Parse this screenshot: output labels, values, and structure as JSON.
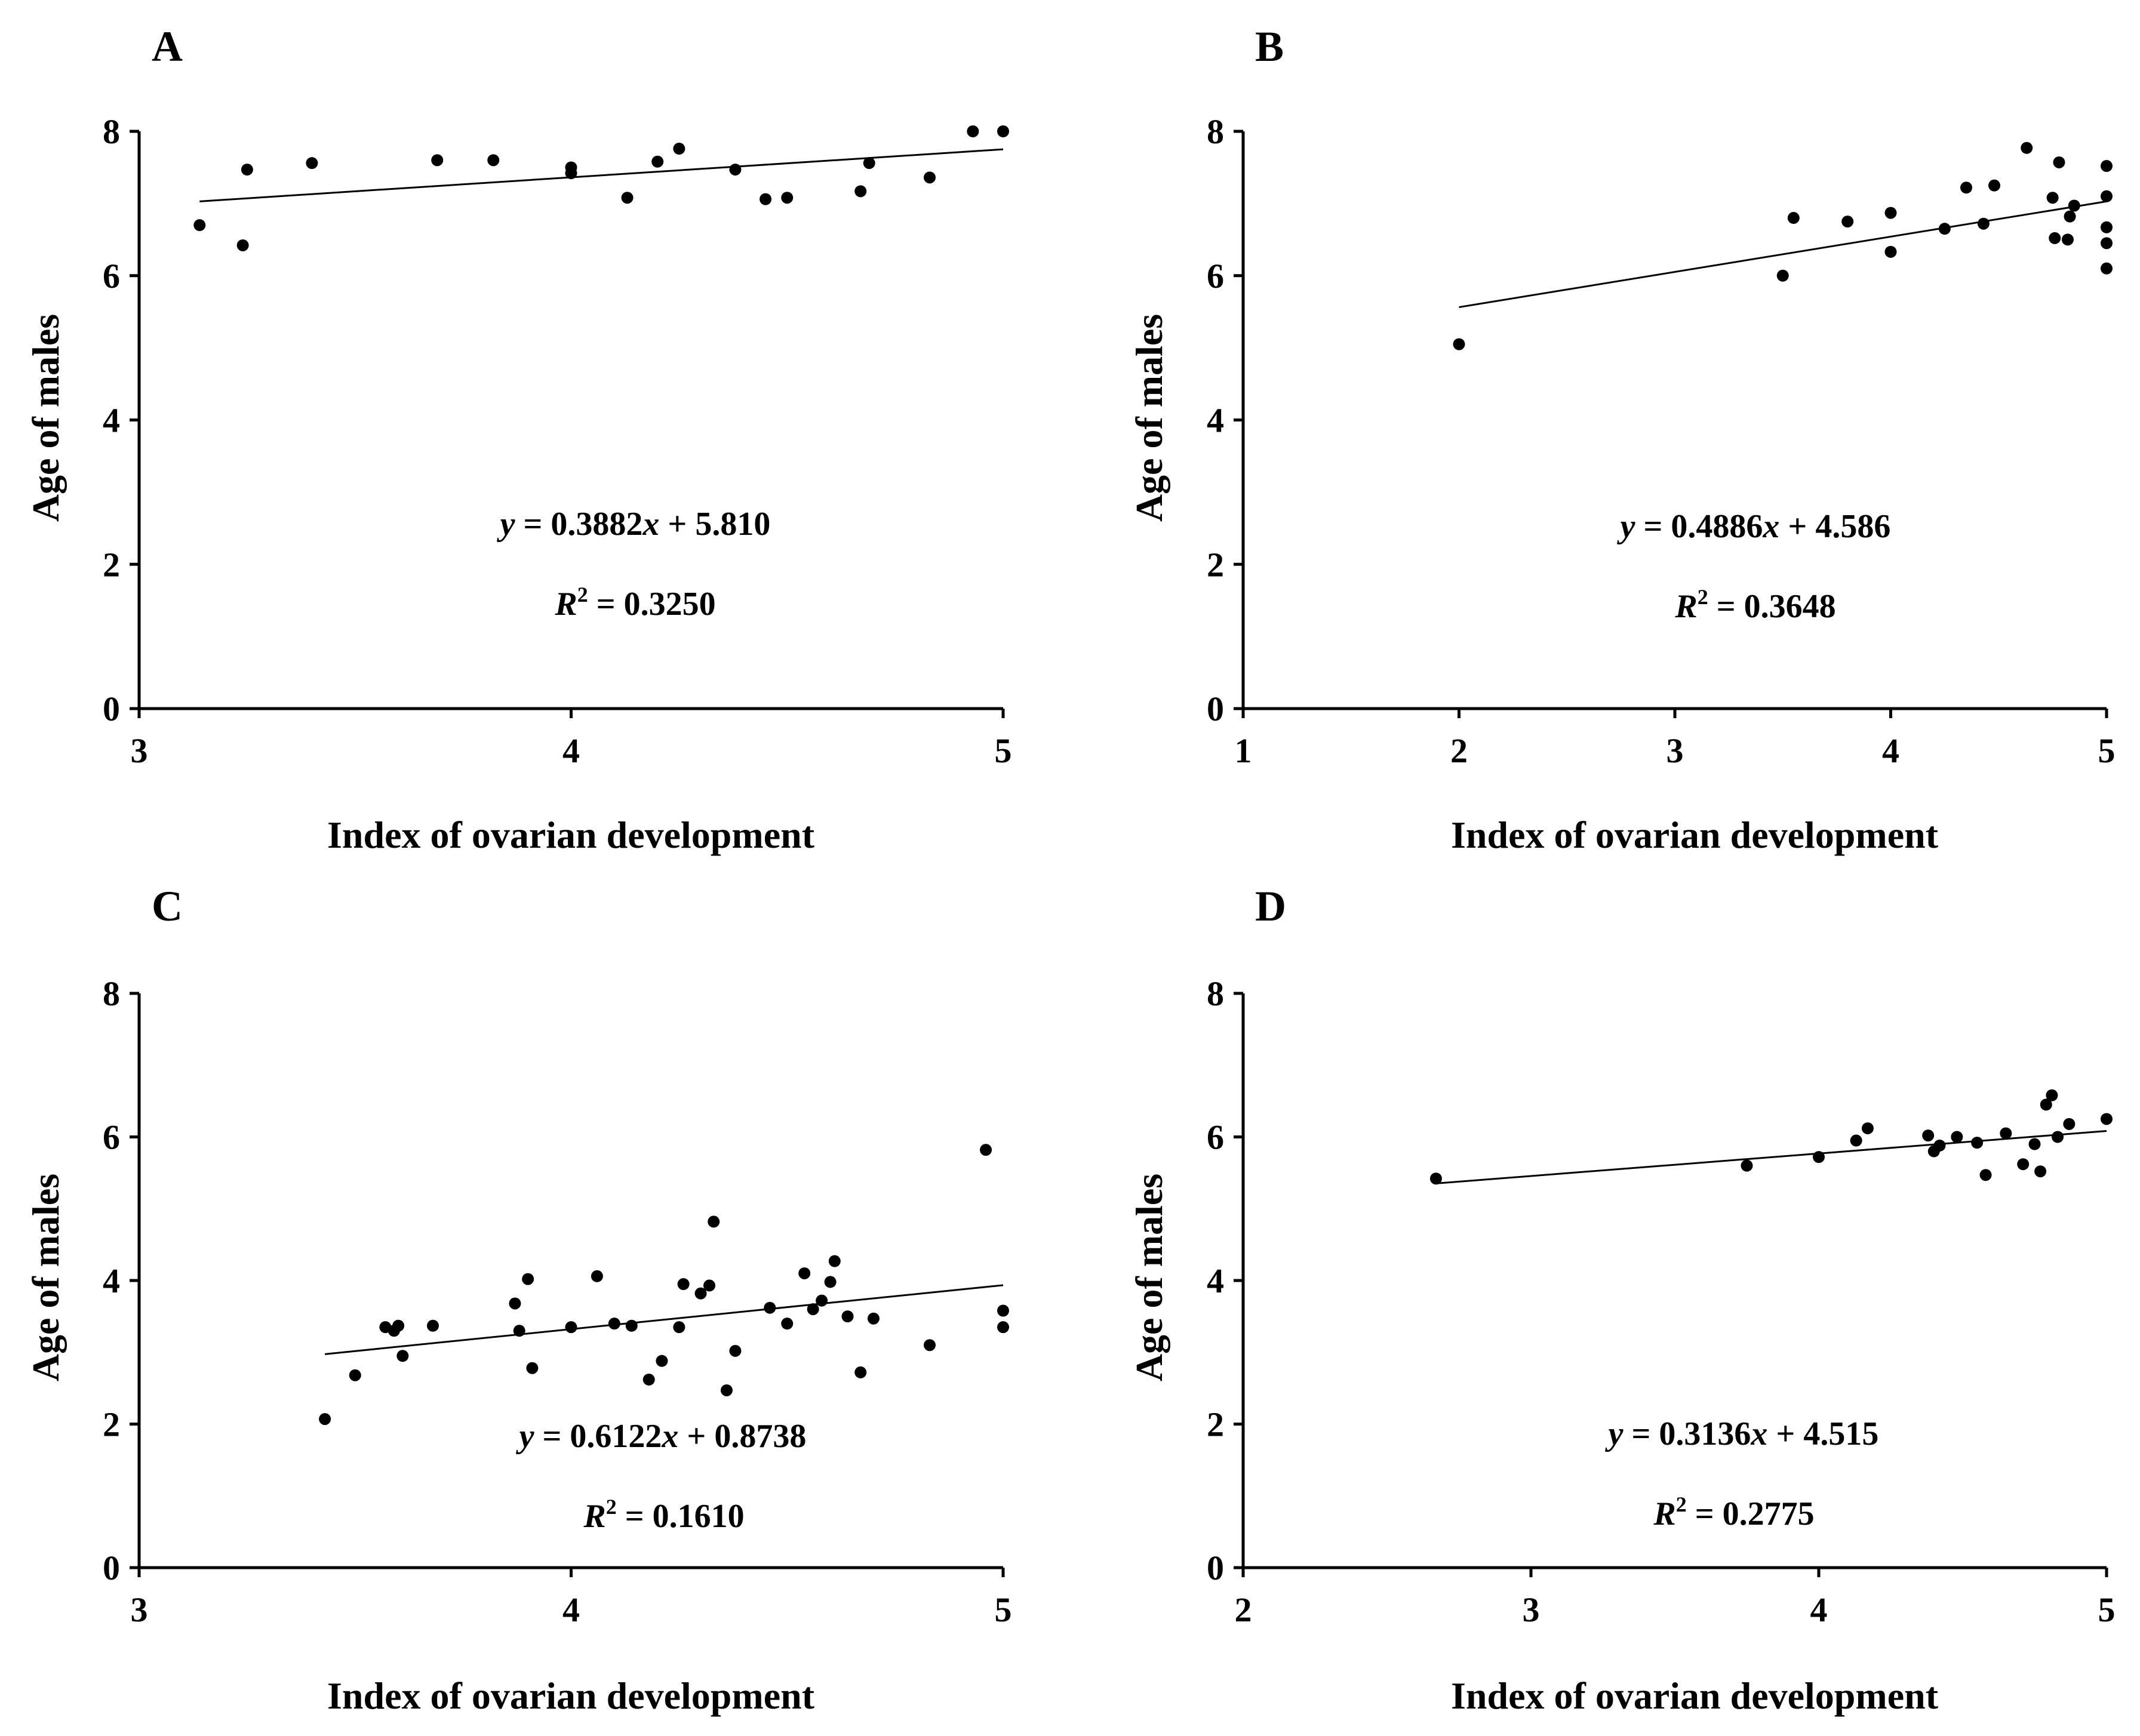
{
  "chart_data": [
    {
      "panel": "A",
      "type": "scatter",
      "xlabel": "Index of ovarian development",
      "ylabel": "Age of males",
      "xlim": [
        3,
        5
      ],
      "ylim": [
        0,
        8
      ],
      "xticks": [
        "3",
        "4",
        "5"
      ],
      "yticks": [
        "0",
        "2",
        "4",
        "6",
        "8"
      ],
      "fit": {
        "slope": 0.3882,
        "intercept": 5.81,
        "x_range": [
          3.14,
          5.0
        ]
      },
      "equation": {
        "y_var": "y",
        "eq_sign": " = ",
        "coef": "0.3882",
        "x_var": "x",
        "rest": " + 5.810"
      },
      "r2": {
        "r": "R",
        "sup": "2",
        "rest": " = 0.3250"
      },
      "points": [
        [
          3.14,
          6.7
        ],
        [
          3.24,
          6.42
        ],
        [
          3.25,
          7.47
        ],
        [
          3.4,
          7.56
        ],
        [
          3.69,
          7.6
        ],
        [
          3.82,
          7.6
        ],
        [
          4.0,
          7.42
        ],
        [
          4.0,
          7.5
        ],
        [
          4.13,
          7.08
        ],
        [
          4.2,
          7.58
        ],
        [
          4.25,
          7.76
        ],
        [
          4.38,
          7.47
        ],
        [
          4.45,
          7.06
        ],
        [
          4.5,
          7.08
        ],
        [
          4.67,
          7.17
        ],
        [
          4.69,
          7.56
        ],
        [
          4.83,
          7.36
        ],
        [
          4.93,
          8.0
        ],
        [
          5.0,
          8.0
        ]
      ]
    },
    {
      "panel": "B",
      "type": "scatter",
      "xlabel": "Index of ovarian development",
      "ylabel": "Age of males",
      "xlim": [
        1,
        5
      ],
      "ylim": [
        0,
        8
      ],
      "xticks": [
        "1",
        "2",
        "3",
        "4",
        "5"
      ],
      "yticks": [
        "0",
        "2",
        "4",
        "6",
        "8"
      ],
      "fit": {
        "slope": 0.4886,
        "intercept": 4.586,
        "x_range": [
          2.0,
          5.0
        ]
      },
      "equation": {
        "y_var": "y",
        "eq_sign": " = ",
        "coef": "0.4886",
        "x_var": "x",
        "rest": " + 4.586"
      },
      "r2": {
        "r": "R",
        "sup": "2",
        "rest": " = 0.3648"
      },
      "points": [
        [
          2.0,
          5.05
        ],
        [
          3.5,
          6.0
        ],
        [
          3.55,
          6.8
        ],
        [
          3.8,
          6.75
        ],
        [
          4.0,
          6.87
        ],
        [
          4.0,
          6.33
        ],
        [
          4.25,
          6.65
        ],
        [
          4.35,
          7.22
        ],
        [
          4.43,
          6.72
        ],
        [
          4.48,
          7.25
        ],
        [
          4.63,
          7.77
        ],
        [
          4.75,
          7.08
        ],
        [
          4.76,
          6.52
        ],
        [
          4.78,
          7.57
        ],
        [
          4.82,
          6.5
        ],
        [
          4.83,
          6.82
        ],
        [
          4.85,
          6.97
        ],
        [
          5.0,
          7.52
        ],
        [
          5.0,
          7.1
        ],
        [
          5.0,
          6.67
        ],
        [
          5.0,
          6.45
        ],
        [
          5.0,
          6.1
        ]
      ]
    },
    {
      "panel": "C",
      "type": "scatter",
      "xlabel": "Index of ovarian development",
      "ylabel": "Age of males",
      "xlim": [
        3,
        5
      ],
      "ylim": [
        0,
        8
      ],
      "xticks": [
        "3",
        "4",
        "5"
      ],
      "yticks": [
        "0",
        "2",
        "4",
        "6",
        "8"
      ],
      "fit": {
        "slope": 0.6122,
        "intercept": 0.8738,
        "x_range": [
          3.43,
          5.0
        ]
      },
      "equation": {
        "y_var": "y",
        "eq_sign": " = ",
        "coef": "0.6122",
        "x_var": "x",
        "rest": " + 0.8738"
      },
      "r2": {
        "r": "R",
        "sup": "2",
        "rest": " = 0.1610"
      },
      "points": [
        [
          3.43,
          2.07
        ],
        [
          3.5,
          2.68
        ],
        [
          3.57,
          3.35
        ],
        [
          3.59,
          3.3
        ],
        [
          3.6,
          3.37
        ],
        [
          3.61,
          2.95
        ],
        [
          3.68,
          3.37
        ],
        [
          3.87,
          3.68
        ],
        [
          3.88,
          3.3
        ],
        [
          3.9,
          4.02
        ],
        [
          3.91,
          2.78
        ],
        [
          4.0,
          3.35
        ],
        [
          4.06,
          4.06
        ],
        [
          4.1,
          3.4
        ],
        [
          4.14,
          3.37
        ],
        [
          4.18,
          2.62
        ],
        [
          4.21,
          2.88
        ],
        [
          4.25,
          3.35
        ],
        [
          4.26,
          3.95
        ],
        [
          4.3,
          3.82
        ],
        [
          4.32,
          3.93
        ],
        [
          4.33,
          4.82
        ],
        [
          4.36,
          2.47
        ],
        [
          4.38,
          3.02
        ],
        [
          4.46,
          3.62
        ],
        [
          4.5,
          3.4
        ],
        [
          4.54,
          4.1
        ],
        [
          4.56,
          3.6
        ],
        [
          4.58,
          3.72
        ],
        [
          4.6,
          3.98
        ],
        [
          4.61,
          4.27
        ],
        [
          4.64,
          3.5
        ],
        [
          4.67,
          2.72
        ],
        [
          4.7,
          3.47
        ],
        [
          4.83,
          3.1
        ],
        [
          4.96,
          5.82
        ],
        [
          5.0,
          3.58
        ],
        [
          5.0,
          3.35
        ]
      ]
    },
    {
      "panel": "D",
      "type": "scatter",
      "xlabel": "Index of ovarian development",
      "ylabel": "Age of males",
      "xlim": [
        2,
        5
      ],
      "ylim": [
        0,
        8
      ],
      "xticks": [
        "2",
        "3",
        "4",
        "5"
      ],
      "yticks": [
        "0",
        "2",
        "4",
        "6",
        "8"
      ],
      "fit": {
        "slope": 0.3136,
        "intercept": 4.515,
        "x_range": [
          2.67,
          5.0
        ]
      },
      "equation": {
        "y_var": "y",
        "eq_sign": " = ",
        "coef": "0.3136",
        "x_var": "x",
        "rest": " + 4.515"
      },
      "r2": {
        "r": "R",
        "sup": "2",
        "rest": " = 0.2775"
      },
      "points": [
        [
          2.67,
          5.42
        ],
        [
          3.75,
          5.6
        ],
        [
          4.0,
          5.72
        ],
        [
          4.13,
          5.95
        ],
        [
          4.17,
          6.12
        ],
        [
          4.38,
          6.02
        ],
        [
          4.4,
          5.8
        ],
        [
          4.42,
          5.88
        ],
        [
          4.48,
          6.0
        ],
        [
          4.55,
          5.92
        ],
        [
          4.58,
          5.47
        ],
        [
          4.65,
          6.05
        ],
        [
          4.71,
          5.62
        ],
        [
          4.75,
          5.9
        ],
        [
          4.77,
          5.52
        ],
        [
          4.79,
          6.45
        ],
        [
          4.81,
          6.58
        ],
        [
          4.83,
          6.0
        ],
        [
          4.87,
          6.18
        ],
        [
          5.0,
          6.25
        ]
      ]
    }
  ]
}
